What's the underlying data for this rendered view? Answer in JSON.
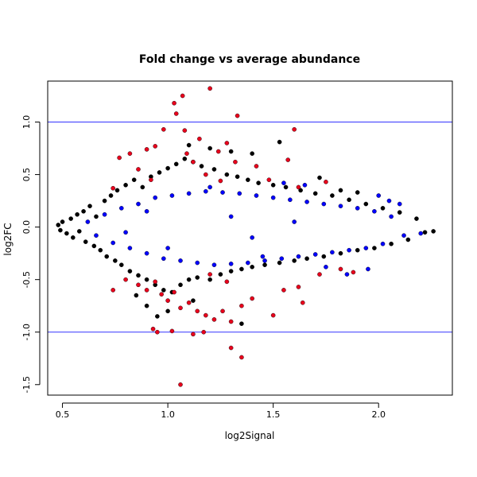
{
  "chart_data": {
    "type": "scatter",
    "title": "Fold change vs average abundance",
    "xlabel": "log2Signal",
    "ylabel": "log2FC",
    "xlim": [
      0.43,
      2.35
    ],
    "ylim": [
      -1.6,
      1.39
    ],
    "x_ticks": [
      {
        "value": 0.5,
        "label": "0.5"
      },
      {
        "value": 1.0,
        "label": "1.0"
      },
      {
        "value": 1.5,
        "label": "1.5"
      },
      {
        "value": 2.0,
        "label": "2.0"
      }
    ],
    "y_ticks": [
      {
        "value": -1.5,
        "label": "-1.5"
      },
      {
        "value": -1.0,
        "label": "-1.0"
      },
      {
        "value": -0.5,
        "label": "-0.5"
      },
      {
        "value": 0.0,
        "label": "0.0"
      },
      {
        "value": 0.5,
        "label": "0.5"
      },
      {
        "value": 1.0,
        "label": "1.0"
      }
    ],
    "reference_lines": [
      {
        "axis": "y",
        "value": 1.0,
        "color": "#3333ff"
      },
      {
        "axis": "y",
        "value": -1.0,
        "color": "#3333ff"
      }
    ],
    "grid": false,
    "legend": "none",
    "series": [
      {
        "color": "#000000",
        "points": [
          [
            0.48,
            0.02
          ],
          [
            0.49,
            -0.03
          ],
          [
            0.5,
            0.05
          ],
          [
            0.52,
            -0.06
          ],
          [
            0.54,
            0.08
          ],
          [
            0.55,
            -0.1
          ],
          [
            0.57,
            0.12
          ],
          [
            0.58,
            -0.04
          ],
          [
            0.6,
            0.15
          ],
          [
            0.61,
            -0.14
          ],
          [
            0.63,
            0.2
          ],
          [
            0.65,
            -0.18
          ],
          [
            0.66,
            0.1
          ],
          [
            0.68,
            -0.22
          ],
          [
            0.7,
            0.25
          ],
          [
            0.71,
            -0.28
          ],
          [
            0.73,
            0.3
          ],
          [
            0.75,
            -0.32
          ],
          [
            0.76,
            0.35
          ],
          [
            0.78,
            -0.36
          ],
          [
            0.8,
            0.4
          ],
          [
            0.82,
            -0.42
          ],
          [
            0.84,
            0.45
          ],
          [
            0.86,
            -0.46
          ],
          [
            0.88,
            0.38
          ],
          [
            0.9,
            -0.5
          ],
          [
            0.92,
            0.48
          ],
          [
            0.94,
            -0.55
          ],
          [
            0.96,
            0.52
          ],
          [
            0.98,
            -0.6
          ],
          [
            1.0,
            0.56
          ],
          [
            1.02,
            -0.62
          ],
          [
            1.04,
            0.6
          ],
          [
            1.06,
            -0.55
          ],
          [
            1.08,
            0.65
          ],
          [
            1.1,
            -0.5
          ],
          [
            1.12,
            0.62
          ],
          [
            1.14,
            -0.48
          ],
          [
            1.16,
            0.58
          ],
          [
            1.2,
            -0.5
          ],
          [
            1.22,
            0.55
          ],
          [
            1.25,
            -0.45
          ],
          [
            1.28,
            0.5
          ],
          [
            1.3,
            -0.42
          ],
          [
            1.33,
            0.48
          ],
          [
            1.35,
            -0.4
          ],
          [
            1.38,
            0.45
          ],
          [
            1.4,
            -0.38
          ],
          [
            1.43,
            0.42
          ],
          [
            1.46,
            -0.36
          ],
          [
            1.5,
            0.4
          ],
          [
            1.53,
            -0.34
          ],
          [
            1.56,
            0.38
          ],
          [
            1.6,
            -0.32
          ],
          [
            1.63,
            0.35
          ],
          [
            1.66,
            -0.3
          ],
          [
            1.7,
            0.32
          ],
          [
            1.74,
            -0.28
          ],
          [
            1.78,
            0.3
          ],
          [
            1.82,
            -0.25
          ],
          [
            1.86,
            0.26
          ],
          [
            1.9,
            -0.22
          ],
          [
            1.94,
            0.22
          ],
          [
            1.98,
            -0.2
          ],
          [
            2.02,
            0.18
          ],
          [
            2.06,
            -0.16
          ],
          [
            2.1,
            0.14
          ],
          [
            2.14,
            -0.12
          ],
          [
            2.18,
            0.08
          ],
          [
            2.22,
            -0.05
          ],
          [
            2.26,
            -0.04
          ],
          [
            1.53,
            0.81
          ],
          [
            1.4,
            0.7
          ],
          [
            1.2,
            0.75
          ],
          [
            0.9,
            -0.75
          ],
          [
            1.0,
            -0.8
          ],
          [
            0.95,
            -0.85
          ],
          [
            1.35,
            -0.92
          ],
          [
            1.72,
            0.47
          ],
          [
            1.82,
            0.35
          ],
          [
            1.9,
            0.33
          ],
          [
            1.3,
            0.72
          ],
          [
            1.1,
            0.78
          ],
          [
            0.85,
            -0.65
          ],
          [
            1.12,
            -0.7
          ]
        ]
      },
      {
        "color": "#0000ff",
        "points": [
          [
            0.62,
            0.05
          ],
          [
            0.66,
            -0.08
          ],
          [
            0.7,
            0.12
          ],
          [
            0.74,
            -0.15
          ],
          [
            0.78,
            0.18
          ],
          [
            0.82,
            -0.2
          ],
          [
            0.86,
            0.22
          ],
          [
            0.9,
            -0.25
          ],
          [
            0.94,
            0.28
          ],
          [
            0.98,
            -0.3
          ],
          [
            1.02,
            0.3
          ],
          [
            1.06,
            -0.32
          ],
          [
            1.1,
            0.32
          ],
          [
            1.14,
            -0.34
          ],
          [
            1.18,
            0.34
          ],
          [
            1.22,
            -0.36
          ],
          [
            1.26,
            0.33
          ],
          [
            1.3,
            -0.35
          ],
          [
            1.34,
            0.32
          ],
          [
            1.38,
            -0.34
          ],
          [
            1.42,
            0.3
          ],
          [
            1.46,
            -0.32
          ],
          [
            1.5,
            0.28
          ],
          [
            1.54,
            -0.3
          ],
          [
            1.58,
            0.26
          ],
          [
            1.62,
            -0.28
          ],
          [
            1.66,
            0.24
          ],
          [
            1.7,
            -0.26
          ],
          [
            1.74,
            0.22
          ],
          [
            1.78,
            -0.24
          ],
          [
            1.82,
            0.2
          ],
          [
            1.86,
            -0.22
          ],
          [
            1.9,
            0.18
          ],
          [
            1.94,
            -0.2
          ],
          [
            1.98,
            0.15
          ],
          [
            2.02,
            -0.16
          ],
          [
            2.06,
            0.1
          ],
          [
            2.12,
            -0.08
          ],
          [
            2.2,
            -0.06
          ],
          [
            2.0,
            0.3
          ],
          [
            2.05,
            0.25
          ],
          [
            2.1,
            0.22
          ],
          [
            1.95,
            -0.4
          ],
          [
            1.85,
            -0.45
          ],
          [
            1.75,
            -0.38
          ],
          [
            1.65,
            0.4
          ],
          [
            1.55,
            0.42
          ],
          [
            1.45,
            -0.28
          ],
          [
            1.2,
            0.38
          ],
          [
            1.0,
            -0.2
          ],
          [
            0.9,
            0.15
          ],
          [
            0.8,
            -0.05
          ],
          [
            1.3,
            0.1
          ],
          [
            1.4,
            -0.1
          ],
          [
            1.6,
            0.05
          ]
        ]
      },
      {
        "color": "#e8001c",
        "points": [
          [
            1.2,
            1.32
          ],
          [
            1.07,
            1.25
          ],
          [
            1.03,
            1.18
          ],
          [
            1.04,
            1.08
          ],
          [
            1.33,
            1.06
          ],
          [
            0.98,
            0.93
          ],
          [
            1.08,
            0.92
          ],
          [
            1.6,
            0.93
          ],
          [
            1.15,
            0.84
          ],
          [
            1.28,
            0.8
          ],
          [
            0.94,
            0.77
          ],
          [
            0.9,
            0.74
          ],
          [
            1.24,
            0.72
          ],
          [
            1.09,
            0.7
          ],
          [
            1.32,
            0.62
          ],
          [
            1.42,
            0.58
          ],
          [
            1.57,
            0.64
          ],
          [
            0.82,
            0.7
          ],
          [
            0.77,
            0.66
          ],
          [
            1.12,
            0.62
          ],
          [
            0.86,
            0.55
          ],
          [
            1.18,
            0.5
          ],
          [
            0.92,
            0.45
          ],
          [
            1.25,
            0.44
          ],
          [
            1.48,
            0.45
          ],
          [
            1.62,
            0.38
          ],
          [
            1.75,
            0.43
          ],
          [
            0.74,
            0.37
          ],
          [
            0.74,
            -0.6
          ],
          [
            0.8,
            -0.5
          ],
          [
            0.86,
            -0.55
          ],
          [
            0.9,
            -0.6
          ],
          [
            0.94,
            -0.52
          ],
          [
            0.97,
            -0.64
          ],
          [
            1.0,
            -0.7
          ],
          [
            1.03,
            -0.62
          ],
          [
            1.06,
            -0.77
          ],
          [
            1.1,
            -0.72
          ],
          [
            1.14,
            -0.8
          ],
          [
            1.18,
            -0.84
          ],
          [
            1.22,
            -0.88
          ],
          [
            1.26,
            -0.8
          ],
          [
            1.3,
            -0.9
          ],
          [
            1.35,
            -0.75
          ],
          [
            1.4,
            -0.68
          ],
          [
            1.5,
            -0.84
          ],
          [
            1.55,
            -0.6
          ],
          [
            1.62,
            -0.57
          ],
          [
            1.64,
            -0.72
          ],
          [
            1.72,
            -0.45
          ],
          [
            1.82,
            -0.4
          ],
          [
            1.88,
            -0.43
          ],
          [
            0.93,
            -0.97
          ],
          [
            0.95,
            -1.0
          ],
          [
            1.02,
            -0.99
          ],
          [
            1.12,
            -1.02
          ],
          [
            1.17,
            -1.0
          ],
          [
            1.3,
            -1.15
          ],
          [
            1.35,
            -1.24
          ],
          [
            1.06,
            -1.5
          ],
          [
            1.2,
            -0.45
          ],
          [
            1.28,
            -0.52
          ]
        ]
      }
    ]
  }
}
